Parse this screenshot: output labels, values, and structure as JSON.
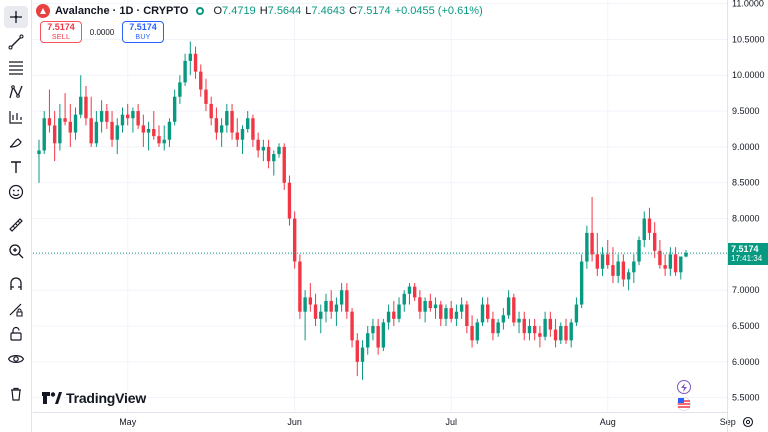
{
  "header": {
    "symbol_title": "Avalanche · 1D · CRYPTO",
    "ohlc": [
      {
        "label": "O",
        "value": "7.4719"
      },
      {
        "label": "H",
        "value": "7.5644"
      },
      {
        "label": "L",
        "value": "7.4643"
      },
      {
        "label": "C",
        "value": "7.5174"
      }
    ],
    "change": "+0.0455 (+0.61%)"
  },
  "trade": {
    "sell_price": "7.5174",
    "sell_label": "SELL",
    "spread": "0.0000",
    "buy_price": "7.5174",
    "buy_label": "BUY"
  },
  "price_badge": {
    "price": "7.5174",
    "countdown": "17:41:34"
  },
  "branding": {
    "logo_text": "TradingView"
  },
  "colors": {
    "up": "#089981",
    "down": "#f23645",
    "grid": "#f0f3fa"
  },
  "toolbar_icons": [
    "cursor-icon",
    "trend-line-icon",
    "fib-icon",
    "pattern-icon",
    "prediction-icon",
    "brush-icon",
    "text-icon",
    "emoji-icon",
    "ruler-icon",
    "zoom-icon",
    "magnet-icon",
    "lock-drawing-icon",
    "unlock-icon",
    "eye-icon",
    "trash-icon"
  ],
  "chart_data": {
    "type": "candlestick",
    "y_ticks": [
      "11.0000",
      "10.5000",
      "10.0000",
      "9.5000",
      "9.0000",
      "8.5000",
      "8.0000",
      "7.5000",
      "7.0000",
      "6.5000",
      "6.0000",
      "5.5000"
    ],
    "ylim": [
      5.3,
      11.05
    ],
    "x_labels": [
      "May",
      "Jun",
      "Jul",
      "Aug",
      "Sep"
    ],
    "last_price": 7.5174,
    "candles": [
      [
        8.9,
        9.1,
        8.5,
        8.95
      ],
      [
        8.95,
        9.5,
        8.9,
        9.4
      ],
      [
        9.4,
        9.8,
        9.2,
        9.3
      ],
      [
        9.3,
        9.5,
        8.8,
        9.05
      ],
      [
        9.05,
        9.6,
        8.95,
        9.4
      ],
      [
        9.4,
        9.75,
        9.3,
        9.35
      ],
      [
        9.35,
        9.6,
        9.0,
        9.2
      ],
      [
        9.2,
        9.55,
        9.1,
        9.45
      ],
      [
        9.45,
        10.0,
        9.4,
        9.7
      ],
      [
        9.7,
        9.85,
        9.3,
        9.4
      ],
      [
        9.4,
        9.7,
        9.0,
        9.05
      ],
      [
        9.05,
        9.5,
        9.0,
        9.35
      ],
      [
        9.35,
        9.65,
        9.2,
        9.5
      ],
      [
        9.5,
        9.6,
        9.25,
        9.35
      ],
      [
        9.35,
        9.5,
        9.0,
        9.1
      ],
      [
        9.1,
        9.4,
        8.9,
        9.3
      ],
      [
        9.3,
        9.55,
        9.2,
        9.45
      ],
      [
        9.45,
        9.6,
        9.3,
        9.4
      ],
      [
        9.4,
        9.55,
        9.2,
        9.5
      ],
      [
        9.5,
        9.6,
        9.25,
        9.3
      ],
      [
        9.3,
        9.45,
        9.0,
        9.2
      ],
      [
        9.2,
        9.35,
        8.95,
        9.25
      ],
      [
        9.25,
        9.5,
        9.1,
        9.15
      ],
      [
        9.15,
        9.3,
        9.0,
        9.05
      ],
      [
        9.05,
        9.3,
        8.95,
        9.1
      ],
      [
        9.1,
        9.4,
        9.0,
        9.35
      ],
      [
        9.35,
        9.8,
        9.3,
        9.7
      ],
      [
        9.7,
        10.0,
        9.6,
        9.9
      ],
      [
        9.9,
        10.3,
        9.85,
        10.2
      ],
      [
        10.2,
        10.47,
        10.0,
        10.3
      ],
      [
        10.3,
        10.4,
        9.95,
        10.05
      ],
      [
        10.05,
        10.15,
        9.7,
        9.8
      ],
      [
        9.8,
        9.95,
        9.5,
        9.6
      ],
      [
        9.6,
        9.7,
        9.3,
        9.4
      ],
      [
        9.4,
        9.55,
        9.1,
        9.2
      ],
      [
        9.2,
        9.4,
        9.0,
        9.3
      ],
      [
        9.3,
        9.6,
        9.2,
        9.5
      ],
      [
        9.5,
        9.6,
        9.1,
        9.2
      ],
      [
        9.2,
        9.4,
        9.0,
        9.1
      ],
      [
        9.1,
        9.3,
        8.9,
        9.25
      ],
      [
        9.25,
        9.5,
        9.2,
        9.4
      ],
      [
        9.4,
        9.45,
        9.0,
        9.1
      ],
      [
        9.1,
        9.2,
        8.85,
        8.95
      ],
      [
        8.95,
        9.1,
        8.8,
        9.0
      ],
      [
        9.0,
        9.1,
        8.7,
        8.8
      ],
      [
        8.8,
        8.95,
        8.6,
        8.9
      ],
      [
        8.9,
        9.05,
        8.85,
        9.0
      ],
      [
        9.0,
        9.05,
        8.4,
        8.5
      ],
      [
        8.5,
        8.6,
        7.9,
        8.0
      ],
      [
        8.0,
        8.1,
        7.3,
        7.4
      ],
      [
        7.4,
        7.5,
        6.6,
        6.7
      ],
      [
        6.7,
        7.0,
        6.3,
        6.9
      ],
      [
        6.9,
        7.1,
        6.7,
        6.8
      ],
      [
        6.8,
        6.95,
        6.5,
        6.6
      ],
      [
        6.6,
        6.8,
        6.4,
        6.7
      ],
      [
        6.7,
        6.95,
        6.55,
        6.85
      ],
      [
        6.85,
        7.0,
        6.6,
        6.7
      ],
      [
        6.7,
        6.9,
        6.5,
        6.8
      ],
      [
        6.8,
        7.1,
        6.7,
        7.0
      ],
      [
        7.0,
        7.1,
        6.6,
        6.7
      ],
      [
        6.7,
        6.75,
        6.2,
        6.3
      ],
      [
        6.3,
        6.4,
        5.8,
        6.0
      ],
      [
        6.0,
        6.3,
        5.75,
        6.2
      ],
      [
        6.2,
        6.5,
        6.1,
        6.4
      ],
      [
        6.4,
        6.6,
        6.3,
        6.5
      ],
      [
        6.5,
        6.6,
        6.1,
        6.2
      ],
      [
        6.2,
        6.6,
        6.15,
        6.55
      ],
      [
        6.55,
        6.8,
        6.45,
        6.7
      ],
      [
        6.7,
        6.85,
        6.5,
        6.6
      ],
      [
        6.6,
        6.9,
        6.55,
        6.8
      ],
      [
        6.8,
        7.0,
        6.7,
        6.95
      ],
      [
        6.95,
        7.1,
        6.8,
        7.05
      ],
      [
        7.05,
        7.1,
        6.85,
        6.9
      ],
      [
        6.9,
        7.0,
        6.6,
        6.7
      ],
      [
        6.7,
        6.9,
        6.55,
        6.85
      ],
      [
        6.85,
        6.95,
        6.7,
        6.75
      ],
      [
        6.75,
        6.9,
        6.6,
        6.8
      ],
      [
        6.8,
        6.85,
        6.5,
        6.6
      ],
      [
        6.6,
        6.8,
        6.5,
        6.75
      ],
      [
        6.75,
        6.85,
        6.55,
        6.6
      ],
      [
        6.6,
        6.8,
        6.5,
        6.7
      ],
      [
        6.7,
        6.9,
        6.6,
        6.8
      ],
      [
        6.8,
        6.85,
        6.4,
        6.5
      ],
      [
        6.5,
        6.65,
        6.2,
        6.3
      ],
      [
        6.3,
        6.6,
        6.25,
        6.55
      ],
      [
        6.55,
        6.9,
        6.5,
        6.8
      ],
      [
        6.8,
        6.9,
        6.55,
        6.6
      ],
      [
        6.6,
        6.7,
        6.3,
        6.4
      ],
      [
        6.4,
        6.6,
        6.35,
        6.55
      ],
      [
        6.55,
        6.75,
        6.45,
        6.65
      ],
      [
        6.65,
        7.0,
        6.6,
        6.9
      ],
      [
        6.9,
        6.95,
        6.5,
        6.55
      ],
      [
        6.55,
        6.7,
        6.4,
        6.6
      ],
      [
        6.6,
        6.7,
        6.3,
        6.4
      ],
      [
        6.4,
        6.6,
        6.3,
        6.5
      ],
      [
        6.5,
        6.6,
        6.3,
        6.4
      ],
      [
        6.4,
        6.5,
        6.2,
        6.35
      ],
      [
        6.35,
        6.7,
        6.3,
        6.6
      ],
      [
        6.6,
        6.7,
        6.35,
        6.45
      ],
      [
        6.45,
        6.6,
        6.2,
        6.3
      ],
      [
        6.3,
        6.55,
        6.25,
        6.5
      ],
      [
        6.5,
        6.6,
        6.25,
        6.3
      ],
      [
        6.3,
        6.6,
        6.2,
        6.55
      ],
      [
        6.55,
        6.9,
        6.5,
        6.8
      ],
      [
        6.8,
        7.5,
        6.75,
        7.4
      ],
      [
        7.4,
        7.9,
        7.3,
        7.8
      ],
      [
        7.8,
        8.3,
        7.4,
        7.5
      ],
      [
        7.5,
        7.8,
        7.2,
        7.3
      ],
      [
        7.3,
        7.6,
        7.2,
        7.5
      ],
      [
        7.5,
        7.7,
        7.3,
        7.35
      ],
      [
        7.35,
        7.6,
        7.1,
        7.2
      ],
      [
        7.2,
        7.5,
        7.1,
        7.4
      ],
      [
        7.4,
        7.5,
        7.05,
        7.15
      ],
      [
        7.15,
        7.3,
        7.0,
        7.25
      ],
      [
        7.25,
        7.5,
        7.1,
        7.4
      ],
      [
        7.4,
        7.75,
        7.35,
        7.7
      ],
      [
        7.7,
        8.1,
        7.6,
        8.0
      ],
      [
        8.0,
        8.15,
        7.7,
        7.8
      ],
      [
        7.8,
        7.95,
        7.45,
        7.55
      ],
      [
        7.55,
        7.7,
        7.3,
        7.35
      ],
      [
        7.35,
        7.5,
        7.2,
        7.3
      ],
      [
        7.3,
        7.6,
        7.2,
        7.5
      ],
      [
        7.5,
        7.6,
        7.2,
        7.25
      ],
      [
        7.25,
        7.45,
        7.15,
        7.47
      ],
      [
        7.47,
        7.56,
        7.46,
        7.52
      ]
    ]
  }
}
